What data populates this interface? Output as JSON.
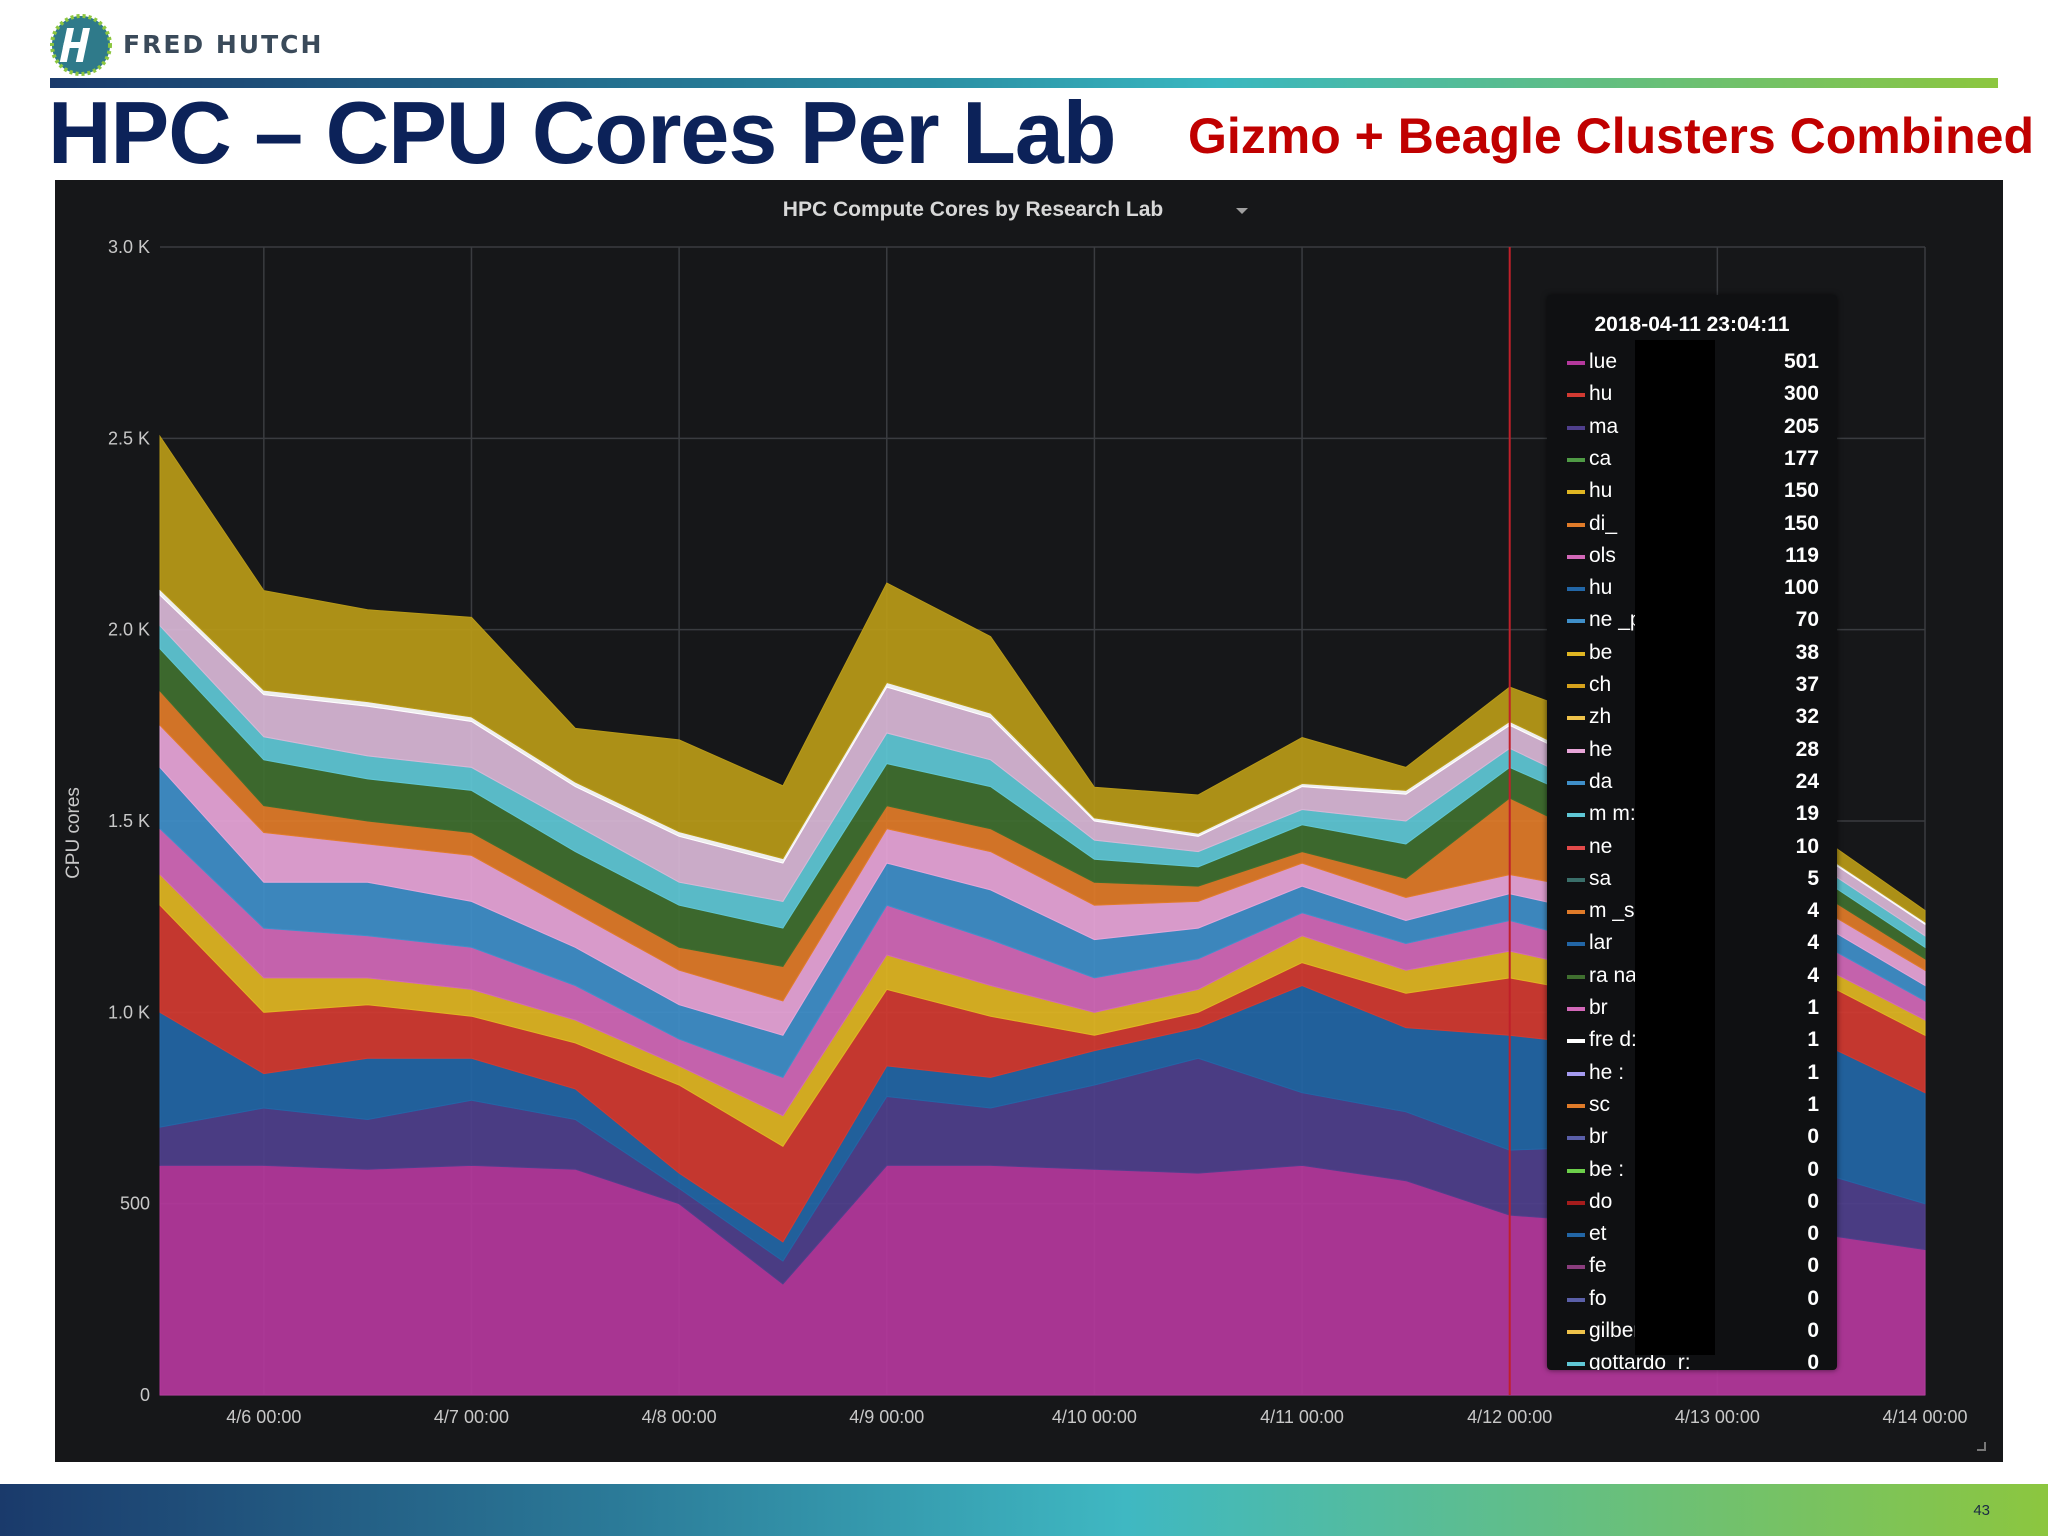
{
  "brand": "FRED HUTCH",
  "title": "HPC – CPU Cores Per Lab",
  "subtitle": "Gizmo + Beagle Clusters Combined",
  "page_number": "43",
  "colors": {
    "title": "#0c2259",
    "subtitle": "#c00000",
    "panel": "#161719"
  },
  "chart_data": {
    "type": "area",
    "stacked": true,
    "title": "HPC Compute Cores by Research Lab",
    "ylabel": "CPU cores",
    "xlabel": "",
    "ylim": [
      0,
      3000
    ],
    "xlim": [
      0,
      8.5
    ],
    "grid": true,
    "y_tick_labels": [
      {
        "value": 0,
        "label": "0"
      },
      {
        "value": 500,
        "label": "500"
      },
      {
        "value": 1000,
        "label": "1.0 K"
      },
      {
        "value": 1500,
        "label": "1.5 K"
      },
      {
        "value": 2000,
        "label": "2.0 K"
      },
      {
        "value": 2500,
        "label": "2.5 K"
      },
      {
        "value": 3000,
        "label": "3.0 K"
      }
    ],
    "x_tick_labels": [
      {
        "value": 0.5,
        "label": "4/6 00:00"
      },
      {
        "value": 1.5,
        "label": "4/7 00:00"
      },
      {
        "value": 2.5,
        "label": "4/8 00:00"
      },
      {
        "value": 3.5,
        "label": "4/9 00:00"
      },
      {
        "value": 4.5,
        "label": "4/10 00:00"
      },
      {
        "value": 5.5,
        "label": "4/11 00:00"
      },
      {
        "value": 6.5,
        "label": "4/12 00:00"
      },
      {
        "value": 7.5,
        "label": "4/13 00:00"
      },
      {
        "value": 8.5,
        "label": "4/14 00:00"
      }
    ],
    "cursor_x": 6.5,
    "x": [
      0,
      0.5,
      1,
      1.5,
      2,
      2.5,
      3,
      3.5,
      4,
      4.5,
      5,
      5.5,
      6,
      6.5,
      7,
      7.5,
      8,
      8.5
    ],
    "series": [
      {
        "color": "#b4389c",
        "values": [
          600,
          600,
          590,
          600,
          590,
          500,
          290,
          600,
          600,
          590,
          580,
          600,
          560,
          470,
          450,
          440,
          420,
          380
        ]
      },
      {
        "color": "#4f3f8c",
        "values": [
          100,
          150,
          130,
          170,
          130,
          40,
          60,
          180,
          150,
          220,
          300,
          190,
          180,
          170,
          200,
          220,
          160,
          120
        ]
      },
      {
        "color": "#2266a6",
        "values": [
          300,
          90,
          160,
          110,
          80,
          40,
          50,
          80,
          80,
          90,
          80,
          280,
          220,
          300,
          260,
          180,
          340,
          290
        ]
      },
      {
        "color": "#d23a32",
        "values": [
          280,
          160,
          140,
          110,
          120,
          230,
          250,
          200,
          160,
          40,
          40,
          60,
          90,
          150,
          130,
          120,
          160,
          150
        ]
      },
      {
        "color": "#e0b622",
        "values": [
          80,
          90,
          70,
          70,
          60,
          50,
          80,
          90,
          80,
          60,
          60,
          70,
          60,
          70,
          60,
          70,
          40,
          40
        ]
      },
      {
        "color": "#d268b8",
        "values": [
          120,
          130,
          110,
          110,
          90,
          70,
          100,
          130,
          120,
          90,
          80,
          60,
          70,
          80,
          70,
          60,
          60,
          50
        ]
      },
      {
        "color": "#3f8fc9",
        "values": [
          160,
          120,
          140,
          120,
          100,
          90,
          110,
          110,
          130,
          100,
          80,
          70,
          60,
          70,
          80,
          60,
          50,
          40
        ]
      },
      {
        "color": "#e7a5d8",
        "values": [
          110,
          130,
          100,
          120,
          90,
          90,
          90,
          90,
          100,
          90,
          70,
          60,
          60,
          50,
          60,
          50,
          40,
          40
        ]
      },
      {
        "color": "#e07b29",
        "values": [
          90,
          70,
          60,
          60,
          60,
          60,
          90,
          60,
          60,
          60,
          40,
          30,
          50,
          200,
          120,
          60,
          40,
          30
        ]
      },
      {
        "color": "#3f6f2f",
        "values": [
          110,
          120,
          110,
          110,
          100,
          110,
          100,
          110,
          110,
          60,
          50,
          70,
          90,
          80,
          90,
          70,
          40,
          30
        ]
      },
      {
        "color": "#5fc7d5",
        "values": [
          60,
          60,
          60,
          60,
          70,
          60,
          70,
          80,
          70,
          50,
          40,
          40,
          60,
          50,
          40,
          40,
          30,
          30
        ]
      },
      {
        "color": "#d8b7d6",
        "values": [
          80,
          110,
          130,
          120,
          100,
          120,
          100,
          120,
          110,
          50,
          40,
          60,
          70,
          60,
          60,
          50,
          30,
          30
        ]
      },
      {
        "color": "#ffffff",
        "values": [
          15,
          12,
          12,
          12,
          12,
          12,
          12,
          12,
          12,
          8,
          8,
          8,
          10,
          10,
          10,
          8,
          6,
          6
        ]
      },
      {
        "color": "#b89a18",
        "values": [
          400,
          260,
          240,
          260,
          140,
          240,
          190,
          260,
          200,
          80,
          100,
          120,
          60,
          90,
          120,
          80,
          40,
          30
        ]
      }
    ]
  },
  "tooltip": {
    "time": "2018-04-11 23:04:11",
    "rows": [
      {
        "name": "lue",
        "value": "501",
        "color": "#b4389c"
      },
      {
        "name": "hu",
        "value": "300",
        "color": "#d23a32"
      },
      {
        "name": "ma",
        "value": "205",
        "color": "#4f3f8c"
      },
      {
        "name": "ca",
        "value": "177",
        "color": "#4f9a45"
      },
      {
        "name": "hu",
        "value": "150",
        "color": "#e0b622"
      },
      {
        "name": "di_",
        "value": "150",
        "color": "#e07b29"
      },
      {
        "name": "ols",
        "value": "119",
        "color": "#d268b8"
      },
      {
        "name": "hu",
        "value": "100",
        "color": "#2266a6"
      },
      {
        "name": "ne          _p:",
        "value": "70",
        "color": "#3f8fc9"
      },
      {
        "name": "be",
        "value": "38",
        "color": "#e0b622"
      },
      {
        "name": "ch",
        "value": "37",
        "color": "#d6a21c"
      },
      {
        "name": "zh",
        "value": "32",
        "color": "#efc24a"
      },
      {
        "name": "he",
        "value": "28",
        "color": "#e7a5d8"
      },
      {
        "name": "da",
        "value": "24",
        "color": "#3f8fc9"
      },
      {
        "name": "m           m:",
        "value": "19",
        "color": "#5fc7d5"
      },
      {
        "name": "ne",
        "value": "10",
        "color": "#e34a4a"
      },
      {
        "name": "sa",
        "value": "5",
        "color": "#3a6f6a"
      },
      {
        "name": "m           _s:",
        "value": "4",
        "color": "#e07b29"
      },
      {
        "name": "lar",
        "value": "4",
        "color": "#2266a6"
      },
      {
        "name": "ra           nan_a:",
        "value": "4",
        "color": "#3f6f2f"
      },
      {
        "name": "br",
        "value": "1",
        "color": "#d268b8"
      },
      {
        "name": "fre          d:",
        "value": "1",
        "color": "#ffffff"
      },
      {
        "name": "he           :",
        "value": "1",
        "color": "#a59bf0"
      },
      {
        "name": "sc",
        "value": "1",
        "color": "#e07b29"
      },
      {
        "name": "br",
        "value": "0",
        "color": "#5a5fa8"
      },
      {
        "name": "be           :",
        "value": "0",
        "color": "#6ccf4a"
      },
      {
        "name": "do",
        "value": "0",
        "color": "#a51c1c"
      },
      {
        "name": "et",
        "value": "0",
        "color": "#2266a6"
      },
      {
        "name": "fe",
        "value": "0",
        "color": "#8a3d7d"
      },
      {
        "name": "fo",
        "value": "0",
        "color": "#5a5fa8"
      },
      {
        "name": "gilbert_p:",
        "value": "0",
        "color": "#efc24a"
      },
      {
        "name": "gottardo_r:",
        "value": "0",
        "color": "#5fc7d5"
      }
    ]
  }
}
